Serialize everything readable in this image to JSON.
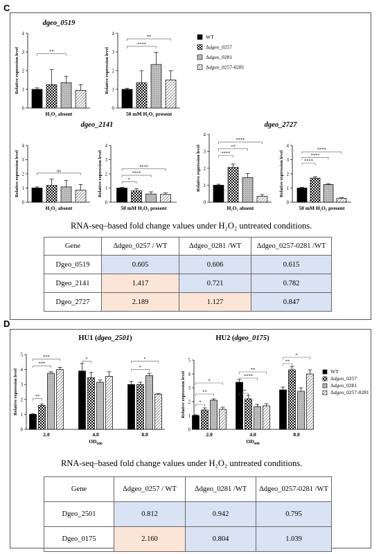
{
  "panel_c": {
    "letter": "C",
    "caption": "RNA-seq–based fold change values under H₂O₂ untreated conditions.",
    "table": {
      "headers": [
        "Gene",
        "Δdgeo_0257 / WT",
        "Δdgeo_0281 /WT",
        "Δdgeo_0257-0281 /WT"
      ],
      "rows": [
        {
          "gene": "Dgeo_0519",
          "values": [
            "0.605",
            "0.606",
            "0.615"
          ],
          "colors": [
            "#dae3f3",
            "#dae3f3",
            "#dae3f3"
          ]
        },
        {
          "gene": "Dgeo_2141",
          "values": [
            "1.417",
            "0.721",
            "0.782"
          ],
          "colors": [
            "#fbe5d6",
            "#dae3f3",
            "#dae3f3"
          ]
        },
        {
          "gene": "Dgeo_2727",
          "values": [
            "2.189",
            "1.127",
            "0.847"
          ],
          "colors": [
            "#fbe5d6",
            "#fbe5d6",
            "#dae3f3"
          ]
        }
      ]
    }
  },
  "panel_d": {
    "letter": "D",
    "caption": "RNA-seq–based fold change values under H₂O₂ untreated conditions.",
    "table": {
      "headers": [
        "Gene",
        "Δdgeo_0257 / WT",
        "Δdgeo_0281 /WT",
        "Δdgeo_0257-0281 /WT"
      ],
      "rows": [
        {
          "gene": "Dgeo_2501",
          "values": [
            "0.812",
            "0.942",
            "0.795"
          ],
          "colors": [
            "#dae3f3",
            "#dae3f3",
            "#dae3f3"
          ]
        },
        {
          "gene": "Dgeo_0175",
          "values": [
            "2.160",
            "0.804",
            "1.039"
          ],
          "colors": [
            "#fbe5d6",
            "#dae3f3",
            "#dae3f3"
          ]
        }
      ]
    }
  },
  "legend_c": [
    "WT",
    "Δdgeo_0257",
    "Δdgeo_0281",
    "Δdgeo_0257-0281"
  ],
  "legend_d": [
    "WT",
    "Δdgeo_0257",
    "Δdgeo_0281",
    "Δdgeo_0257-0281"
  ],
  "chart_data": [
    {
      "id": "c1",
      "type": "bar",
      "group_title": "dgeo_0519",
      "xlabel": "H₂O₂ absent",
      "ylabel": "Relative expression level",
      "ylim": [
        0,
        4
      ],
      "yticks": [
        0,
        1,
        2,
        3,
        4
      ],
      "groups": [
        {
          "label": "",
          "values": [
            1.0,
            1.25,
            1.35,
            0.95
          ],
          "errors": [
            0.08,
            0.8,
            0.35,
            0.3
          ]
        }
      ],
      "brackets": [
        {
          "group": 0,
          "from": 0,
          "to": 2,
          "y": 2.9,
          "label": "**"
        }
      ]
    },
    {
      "id": "c2",
      "type": "bar",
      "xlabel": "50 mM H₂O₂ present",
      "ylabel": "Relative expression level",
      "ylim": [
        0,
        4
      ],
      "yticks": [
        0,
        1,
        2,
        3,
        4
      ],
      "groups": [
        {
          "label": "",
          "values": [
            1.0,
            1.35,
            2.33,
            1.5
          ],
          "errors": [
            0.06,
            0.65,
            0.65,
            0.5
          ]
        }
      ],
      "brackets": [
        {
          "group": 0,
          "from": 0,
          "to": 3,
          "y": 3.7,
          "label": "**"
        },
        {
          "group": 0,
          "from": 0,
          "to": 2,
          "y": 3.3,
          "label": "****"
        }
      ]
    },
    {
      "id": "c3",
      "type": "bar",
      "group_title": "dgeo_2141",
      "xlabel": "H₂O₂ absent",
      "ylabel": "Relative expression level",
      "ylim": [
        0,
        4
      ],
      "yticks": [
        0,
        1,
        2,
        3,
        4
      ],
      "groups": [
        {
          "label": "",
          "values": [
            1.0,
            1.18,
            1.08,
            0.85
          ],
          "errors": [
            0.08,
            0.45,
            0.45,
            0.4
          ]
        }
      ],
      "brackets": [
        {
          "group": 0,
          "from": 0,
          "to": 3,
          "y": 2.05,
          "label": "ns"
        }
      ]
    },
    {
      "id": "c4",
      "type": "bar",
      "xlabel": "50 mM H₂O₂ present",
      "ylabel": "Relative expression level",
      "ylim": [
        0,
        4
      ],
      "yticks": [
        0,
        1,
        2,
        3,
        4
      ],
      "groups": [
        {
          "label": "",
          "values": [
            1.0,
            0.8,
            0.58,
            0.55
          ],
          "errors": [
            0.06,
            0.15,
            0.15,
            0.1
          ]
        }
      ],
      "brackets": [
        {
          "group": 0,
          "from": 0,
          "to": 3,
          "y": 2.35,
          "label": "****"
        },
        {
          "group": 0,
          "from": 0,
          "to": 2,
          "y": 1.9,
          "label": "****"
        },
        {
          "group": 0,
          "from": 0,
          "to": 1,
          "y": 1.45,
          "label": "*"
        }
      ]
    },
    {
      "id": "c5",
      "type": "bar",
      "group_title": "dgeo_2727",
      "xlabel": "H₂O₂ absent",
      "ylabel": "Relative expression level",
      "ylim": [
        0,
        4
      ],
      "yticks": [
        0,
        1,
        2,
        3,
        4
      ],
      "groups": [
        {
          "label": "",
          "values": [
            1.0,
            2.05,
            1.45,
            0.35
          ],
          "errors": [
            0.06,
            0.2,
            0.25,
            0.1
          ]
        }
      ],
      "brackets": [
        {
          "group": 0,
          "from": 0,
          "to": 3,
          "y": 3.55,
          "label": "****"
        },
        {
          "group": 0,
          "from": 0,
          "to": 2,
          "y": 3.15,
          "label": "**"
        },
        {
          "group": 0,
          "from": 0,
          "to": 1,
          "y": 2.75,
          "label": "****"
        }
      ]
    },
    {
      "id": "c6",
      "type": "bar",
      "xlabel": "50 mM H₂O₂ present",
      "ylabel": "Relative expression level",
      "ylim": [
        0,
        4
      ],
      "yticks": [
        0,
        1,
        2,
        3,
        4
      ],
      "groups": [
        {
          "label": "",
          "values": [
            1.0,
            1.7,
            1.25,
            0.28
          ],
          "errors": [
            0.05,
            0.1,
            0.05,
            0.05
          ]
        }
      ],
      "brackets": [
        {
          "group": 0,
          "from": 0,
          "to": 3,
          "y": 3.55,
          "label": "****"
        },
        {
          "group": 0,
          "from": 0,
          "to": 2,
          "y": 3.15,
          "label": "****"
        },
        {
          "group": 0,
          "from": 0,
          "to": 1,
          "y": 2.75,
          "label": "****"
        }
      ]
    },
    {
      "id": "d1",
      "type": "bar",
      "group_title": "HU1 (dgeo_2501)",
      "xlabel": "OD600",
      "ylabel": "Relative expression level",
      "ylim": [
        0,
        5
      ],
      "yticks": [
        0,
        1,
        2,
        3,
        4,
        5
      ],
      "groups": [
        {
          "label": "2.0",
          "values": [
            1.0,
            1.6,
            3.75,
            4.0
          ],
          "errors": [
            0.05,
            0.1,
            0.1,
            0.15
          ]
        },
        {
          "label": "4.0",
          "values": [
            3.9,
            3.45,
            3.15,
            3.55
          ],
          "errors": [
            0.5,
            0.35,
            0.15,
            0.3
          ]
        },
        {
          "label": "8.0",
          "values": [
            3.0,
            3.0,
            3.6,
            2.35
          ],
          "errors": [
            0.2,
            0.15,
            0.15,
            0.05
          ]
        }
      ],
      "brackets": [
        {
          "group": 0,
          "from": 0,
          "to": 1,
          "y": 2.05,
          "label": "**"
        },
        {
          "group": 0,
          "from": 0,
          "to": 2,
          "y": 4.25,
          "label": "***"
        },
        {
          "group": 0,
          "from": 0,
          "to": 3,
          "y": 4.7,
          "label": "***"
        },
        {
          "group": 1,
          "from": 0,
          "to": 1,
          "y": 4.55,
          "label": "*"
        },
        {
          "group": 2,
          "from": 0,
          "to": 2,
          "y": 4.0,
          "label": "*"
        },
        {
          "group": 2,
          "from": 0,
          "to": 3,
          "y": 4.55,
          "label": "*"
        }
      ]
    },
    {
      "id": "d2",
      "type": "bar",
      "group_title": "HU2 (dgeo_0175)",
      "xlabel": "OD600",
      "ylabel": "Relative expression level",
      "ylim": [
        0,
        5
      ],
      "yticks": [
        0,
        1,
        2,
        3,
        4,
        5
      ],
      "groups": [
        {
          "label": "2.0",
          "values": [
            1.0,
            1.4,
            2.1,
            1.45
          ],
          "errors": [
            0.05,
            0.15,
            0.1,
            0.15
          ]
        },
        {
          "label": "4.0",
          "values": [
            3.4,
            2.2,
            1.65,
            1.7
          ],
          "errors": [
            0.2,
            0.25,
            0.15,
            0.15
          ]
        },
        {
          "label": "8.0",
          "values": [
            2.85,
            4.3,
            2.75,
            4.0
          ],
          "errors": [
            0.2,
            0.25,
            0.25,
            0.3
          ]
        }
      ],
      "brackets": [
        {
          "group": 0,
          "from": 0,
          "to": 1,
          "y": 1.8,
          "label": "*"
        },
        {
          "group": 0,
          "from": 0,
          "to": 2,
          "y": 2.55,
          "label": "**"
        },
        {
          "group": 0,
          "from": 0,
          "to": 3,
          "y": 3.35,
          "label": "*"
        },
        {
          "group": 1,
          "from": 0,
          "to": 1,
          "y": 2.6,
          "label": "**"
        },
        {
          "group": 1,
          "from": 0,
          "to": 2,
          "y": 3.7,
          "label": "****"
        },
        {
          "group": 1,
          "from": 0,
          "to": 3,
          "y": 4.15,
          "label": "**"
        },
        {
          "group": 2,
          "from": 0,
          "to": 1,
          "y": 4.75,
          "label": "**"
        },
        {
          "group": 2,
          "from": 0,
          "to": 3,
          "y": 5.2,
          "label": "*"
        }
      ]
    }
  ]
}
